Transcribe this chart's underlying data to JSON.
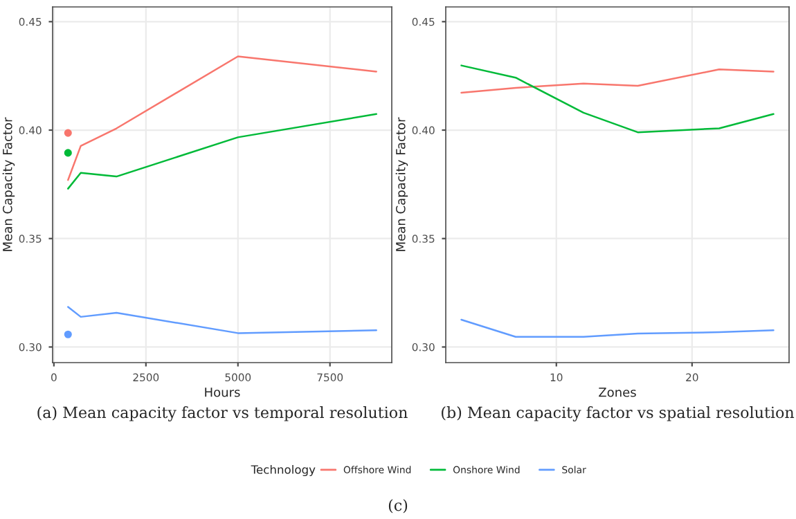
{
  "chart_data": [
    {
      "type": "line",
      "xlabel": "Hours",
      "ylabel": "Mean Capacity Factor",
      "x": [
        384,
        730,
        1700,
        5000,
        8760
      ],
      "series": [
        {
          "name": "Offshore Wind",
          "color": "#f8766d",
          "values": [
            0.377,
            0.3927,
            0.4008,
            0.434,
            0.427
          ]
        },
        {
          "name": "Onshore Wind",
          "color": "#00ba38",
          "values": [
            0.373,
            0.3803,
            0.3786,
            0.3967,
            0.4074
          ]
        },
        {
          "name": "Solar",
          "color": "#619cff",
          "values": [
            0.3185,
            0.3139,
            0.3158,
            0.3064,
            0.3077
          ]
        },
        {
          "type": "scatter",
          "color": "#f8766d",
          "values": [
            0.3987,
            null,
            null,
            null,
            null
          ]
        },
        {
          "type": "scatter",
          "color": "#00ba38",
          "values": [
            0.3895,
            null,
            null,
            null,
            null
          ]
        },
        {
          "type": "scatter",
          "color": "#619cff",
          "values": [
            0.3058,
            null,
            null,
            null,
            null
          ]
        }
      ],
      "xlim": [
        -35,
        9179
      ],
      "xticks": [
        0,
        2500,
        5000,
        7500
      ],
      "ylim": [
        0.2928,
        0.4568
      ],
      "yticks": [
        {
          "value": 0.3,
          "label": "0.30"
        },
        {
          "value": 0.35,
          "label": "0.35"
        },
        {
          "value": 0.4,
          "label": "0.40"
        },
        {
          "value": 0.45,
          "label": "0.45"
        }
      ],
      "grid": true,
      "legend": "bottom",
      "legend_title": "Technology",
      "annotations": [
        "(a) Mean capacity factor vs temporal resolution",
        "(c)"
      ]
    },
    {
      "type": "line",
      "xlabel": "Zones",
      "ylabel": "Mean Capacity Factor",
      "x": [
        3,
        7,
        12,
        16,
        22,
        26
      ],
      "series": [
        {
          "name": "Offshore Wind",
          "color": "#f8766d",
          "values": [
            0.4172,
            0.4195,
            0.4215,
            0.4204,
            0.428,
            0.427
          ]
        },
        {
          "name": "Onshore Wind",
          "color": "#00ba38",
          "values": [
            0.4298,
            0.4242,
            0.408,
            0.399,
            0.4008,
            0.4074
          ]
        },
        {
          "name": "Solar",
          "color": "#619cff",
          "values": [
            0.3126,
            0.3047,
            0.3047,
            0.3062,
            0.3068,
            0.3077
          ]
        }
      ],
      "xlim": [
        1.85,
        27.15
      ],
      "xticks": [
        10,
        20
      ],
      "ylim": [
        0.2928,
        0.4568
      ],
      "yticks": [
        {
          "value": 0.3,
          "label": "0.30"
        },
        {
          "value": 0.35,
          "label": "0.35"
        },
        {
          "value": 0.4,
          "label": "0.40"
        },
        {
          "value": 0.45,
          "label": "0.45"
        }
      ],
      "grid": true,
      "annotations": [
        "(b) Mean capacity factor vs spatial resolution"
      ]
    }
  ]
}
